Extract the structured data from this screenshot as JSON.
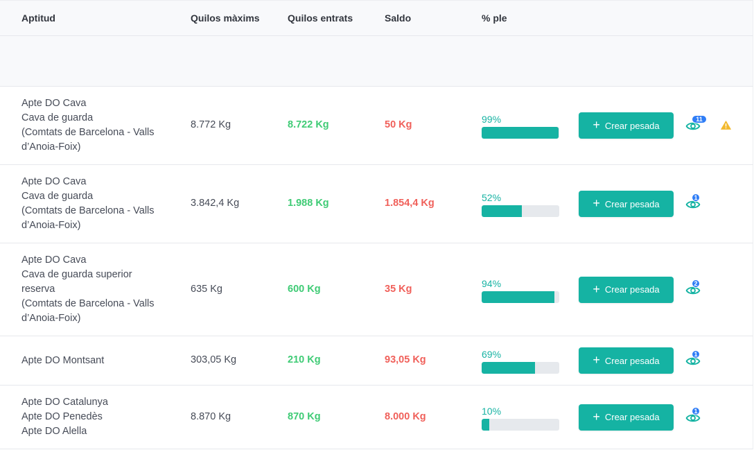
{
  "colors": {
    "accent": "#15b3a3",
    "received": "#3fcb75",
    "balance": "#f0605a",
    "badge": "#2f7df6",
    "warning": "#f2b92d"
  },
  "headers": {
    "aptitude": "Aptitud",
    "max_kilos": "Quilos màxims",
    "received_kilos": "Quilos entrats",
    "balance": "Saldo",
    "percent_full": "% ple"
  },
  "create_button_label": "Crear pesada",
  "rows": [
    {
      "aptitude_lines": [
        "Apte DO Cava",
        "Cava de guarda",
        "(Comtats de Barcelona - Valls",
        "d’Anoia-Foix)"
      ],
      "max_kilos": "8.772 Kg",
      "received_kilos": "8.722 Kg",
      "balance": "50 Kg",
      "percent_label": "99%",
      "percent_value": 99,
      "views_count": "11",
      "warning_icon": "warning-triangle-icon"
    },
    {
      "aptitude_lines": [
        "Apte DO Cava",
        "Cava de guarda",
        "(Comtats de Barcelona - Valls",
        "d’Anoia-Foix)"
      ],
      "max_kilos": "3.842,4 Kg",
      "received_kilos": "1.988 Kg",
      "balance": "1.854,4 Kg",
      "percent_label": "52%",
      "percent_value": 52,
      "views_count": "1"
    },
    {
      "aptitude_lines": [
        "Apte DO Cava",
        "Cava de guarda superior",
        "reserva",
        "(Comtats de Barcelona - Valls",
        "d’Anoia-Foix)"
      ],
      "max_kilos": "635 Kg",
      "received_kilos": "600 Kg",
      "balance": "35 Kg",
      "percent_label": "94%",
      "percent_value": 94,
      "views_count": "2"
    },
    {
      "aptitude_lines": [
        "Apte DO Montsant"
      ],
      "max_kilos": "303,05 Kg",
      "received_kilos": "210 Kg",
      "balance": "93,05 Kg",
      "percent_label": "69%",
      "percent_value": 69,
      "views_count": "1"
    },
    {
      "aptitude_lines": [
        "Apte DO Catalunya",
        "Apte DO Penedès",
        "Apte DO Alella"
      ],
      "max_kilos": "8.870 Kg",
      "received_kilos": "870 Kg",
      "balance": "8.000 Kg",
      "percent_label": "10%",
      "percent_value": 10,
      "views_count": "1"
    }
  ]
}
